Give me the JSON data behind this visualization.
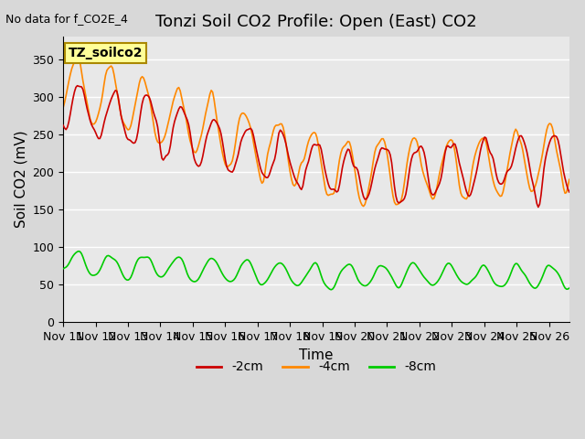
{
  "title": "Tonzi Soil CO2 Profile: Open (East) CO2",
  "subtitle": "No data for f_CO2E_4",
  "ylabel": "Soil CO2 (mV)",
  "xlabel": "Time",
  "legend_label": "TZ_soilco2",
  "ylim": [
    0,
    380
  ],
  "xlim": [
    0,
    375
  ],
  "xtick_positions": [
    0,
    24,
    48,
    72,
    96,
    120,
    144,
    168,
    192,
    216,
    240,
    264,
    288,
    312,
    336,
    360
  ],
  "xtick_labels": [
    "Nov 11",
    "Nov 12",
    "Nov 13",
    "Nov 14",
    "Nov 15",
    "Nov 16",
    "Nov 17",
    "Nov 18",
    "Nov 19",
    "Nov 20",
    "Nov 21",
    "Nov 22",
    "Nov 23",
    "Nov 24",
    "Nov 25",
    "Nov 26"
  ],
  "ytick_positions": [
    0,
    50,
    100,
    150,
    200,
    250,
    300,
    350
  ],
  "color_2cm": "#cc0000",
  "color_4cm": "#ff8800",
  "color_8cm": "#00cc00",
  "bg_color": "#e8e8e8",
  "legend_box_color": "#ffff99",
  "legend_box_edge": "#aa8800",
  "title_fontsize": 13,
  "axis_fontsize": 11,
  "tick_fontsize": 9,
  "legend_fontsize": 10,
  "linewidth": 1.2
}
